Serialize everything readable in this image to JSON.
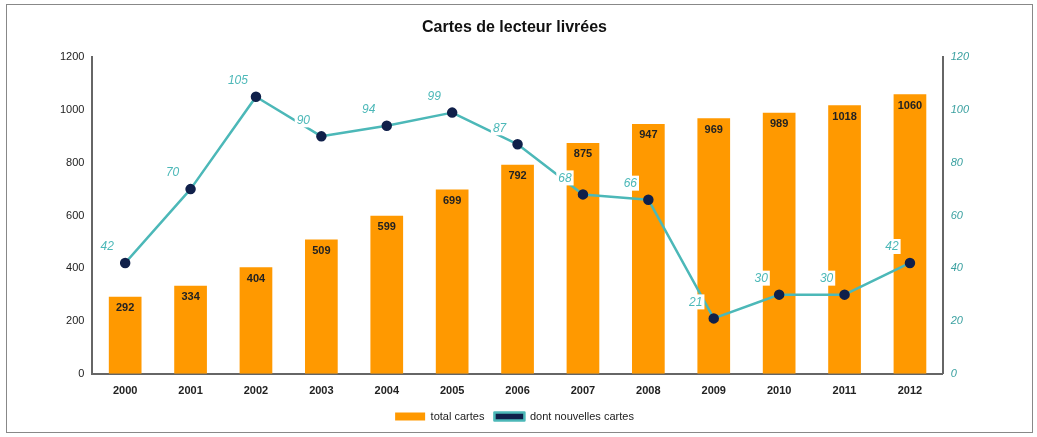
{
  "chart_data": {
    "type": "bar",
    "title": "Cartes de lecteur livrées",
    "categories": [
      "2000",
      "2001",
      "2002",
      "2003",
      "2004",
      "2005",
      "2006",
      "2007",
      "2008",
      "2009",
      "2010",
      "2011",
      "2012"
    ],
    "series": [
      {
        "name": "total cartes",
        "color": "#ff9900",
        "values": [
          292,
          334,
          404,
          509,
          599,
          699,
          792,
          875,
          947,
          969,
          989,
          1018,
          1060
        ]
      },
      {
        "name": "dont nouvelles cartes",
        "type": "line",
        "axis": "y2",
        "color": "#4cb8b8",
        "values": [
          42,
          70,
          105,
          90,
          94,
          99,
          87,
          68,
          66,
          21,
          30,
          30,
          42
        ]
      }
    ],
    "ylim": [
      0,
      1200
    ],
    "yticks": [
      0,
      200,
      400,
      600,
      800,
      1000,
      1200
    ],
    "y2lim": [
      0,
      120
    ],
    "y2ticks": [
      0,
      20,
      40,
      60,
      80,
      100,
      120
    ],
    "grid": false,
    "legend": "bottom",
    "marker": "circle",
    "data_labels": true
  }
}
